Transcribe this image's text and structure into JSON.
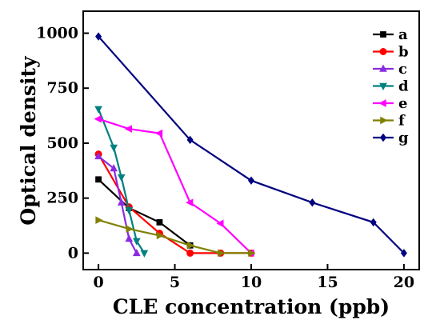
{
  "chart_data": {
    "type": "line",
    "xlabel": "CLE concentration (ppb)",
    "ylabel": "Optical density",
    "xlim": [
      -1,
      21
    ],
    "ylim": [
      -75,
      1100
    ],
    "xticks": [
      0,
      5,
      10,
      15,
      20
    ],
    "yticks": [
      0,
      250,
      500,
      750,
      1000
    ],
    "grid": false,
    "legend_position": "top-right",
    "series": [
      {
        "name": "a",
        "color": "#000000",
        "marker": "square",
        "points": [
          [
            0,
            335
          ],
          [
            2,
            205
          ],
          [
            4,
            140
          ],
          [
            6,
            35
          ]
        ]
      },
      {
        "name": "b",
        "color": "#ff0000",
        "marker": "circle",
        "points": [
          [
            0,
            450
          ],
          [
            2,
            210
          ],
          [
            4,
            90
          ],
          [
            6,
            0
          ],
          [
            8,
            0
          ],
          [
            10,
            0
          ]
        ]
      },
      {
        "name": "c",
        "color": "#8a2be2",
        "marker": "triangle-up",
        "points": [
          [
            0,
            440
          ],
          [
            1,
            385
          ],
          [
            1.5,
            230
          ],
          [
            2,
            65
          ],
          [
            2.5,
            0
          ]
        ]
      },
      {
        "name": "d",
        "color": "#008080",
        "marker": "triangle-down",
        "points": [
          [
            0,
            655
          ],
          [
            1,
            480
          ],
          [
            1.5,
            345
          ],
          [
            2,
            195
          ],
          [
            2.5,
            55
          ],
          [
            3,
            0
          ]
        ]
      },
      {
        "name": "e",
        "color": "#ff00ff",
        "marker": "triangle-left",
        "points": [
          [
            0,
            610
          ],
          [
            2,
            565
          ],
          [
            4,
            545
          ],
          [
            6,
            230
          ],
          [
            8,
            135
          ],
          [
            10,
            0
          ]
        ]
      },
      {
        "name": "f",
        "color": "#808000",
        "marker": "triangle-right",
        "points": [
          [
            0,
            150
          ],
          [
            2,
            110
          ],
          [
            4,
            80
          ],
          [
            6,
            35
          ],
          [
            8,
            0
          ],
          [
            10,
            0
          ]
        ]
      },
      {
        "name": "g",
        "color": "#000080",
        "marker": "diamond",
        "points": [
          [
            0,
            985
          ],
          [
            6,
            515
          ],
          [
            10,
            330
          ],
          [
            14,
            230
          ],
          [
            18,
            140
          ],
          [
            20,
            0
          ]
        ]
      }
    ]
  }
}
